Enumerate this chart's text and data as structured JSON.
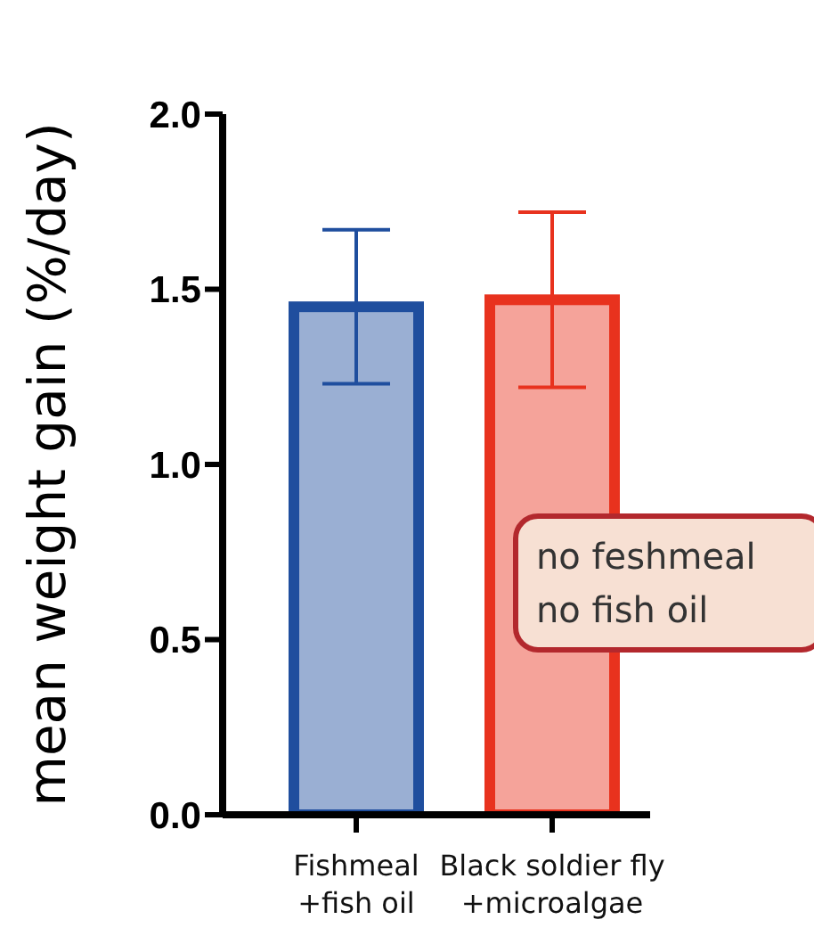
{
  "chart_data": {
    "type": "bar",
    "ylabel": "mean weight gain (%/day)",
    "categories": [
      "Fishmeal\n+fish oil",
      "Black soldier fly\n+microalgae"
    ],
    "values": [
      1.45,
      1.47
    ],
    "errors": [
      0.22,
      0.25
    ],
    "colors": [
      "#1f4e9e",
      "#e8321e"
    ],
    "ylim": [
      0,
      2.0
    ],
    "yticks": [
      {
        "value": 0,
        "label": "0.0"
      },
      {
        "value": 0.5,
        "label": "0.5"
      },
      {
        "value": 1,
        "label": "1.0"
      },
      {
        "value": 1.5,
        "label": "1.5"
      },
      {
        "value": 2,
        "label": "2.0"
      }
    ],
    "grid": false,
    "legend": false,
    "annotations": [
      "no feshmeal\nno fish oil"
    ]
  }
}
